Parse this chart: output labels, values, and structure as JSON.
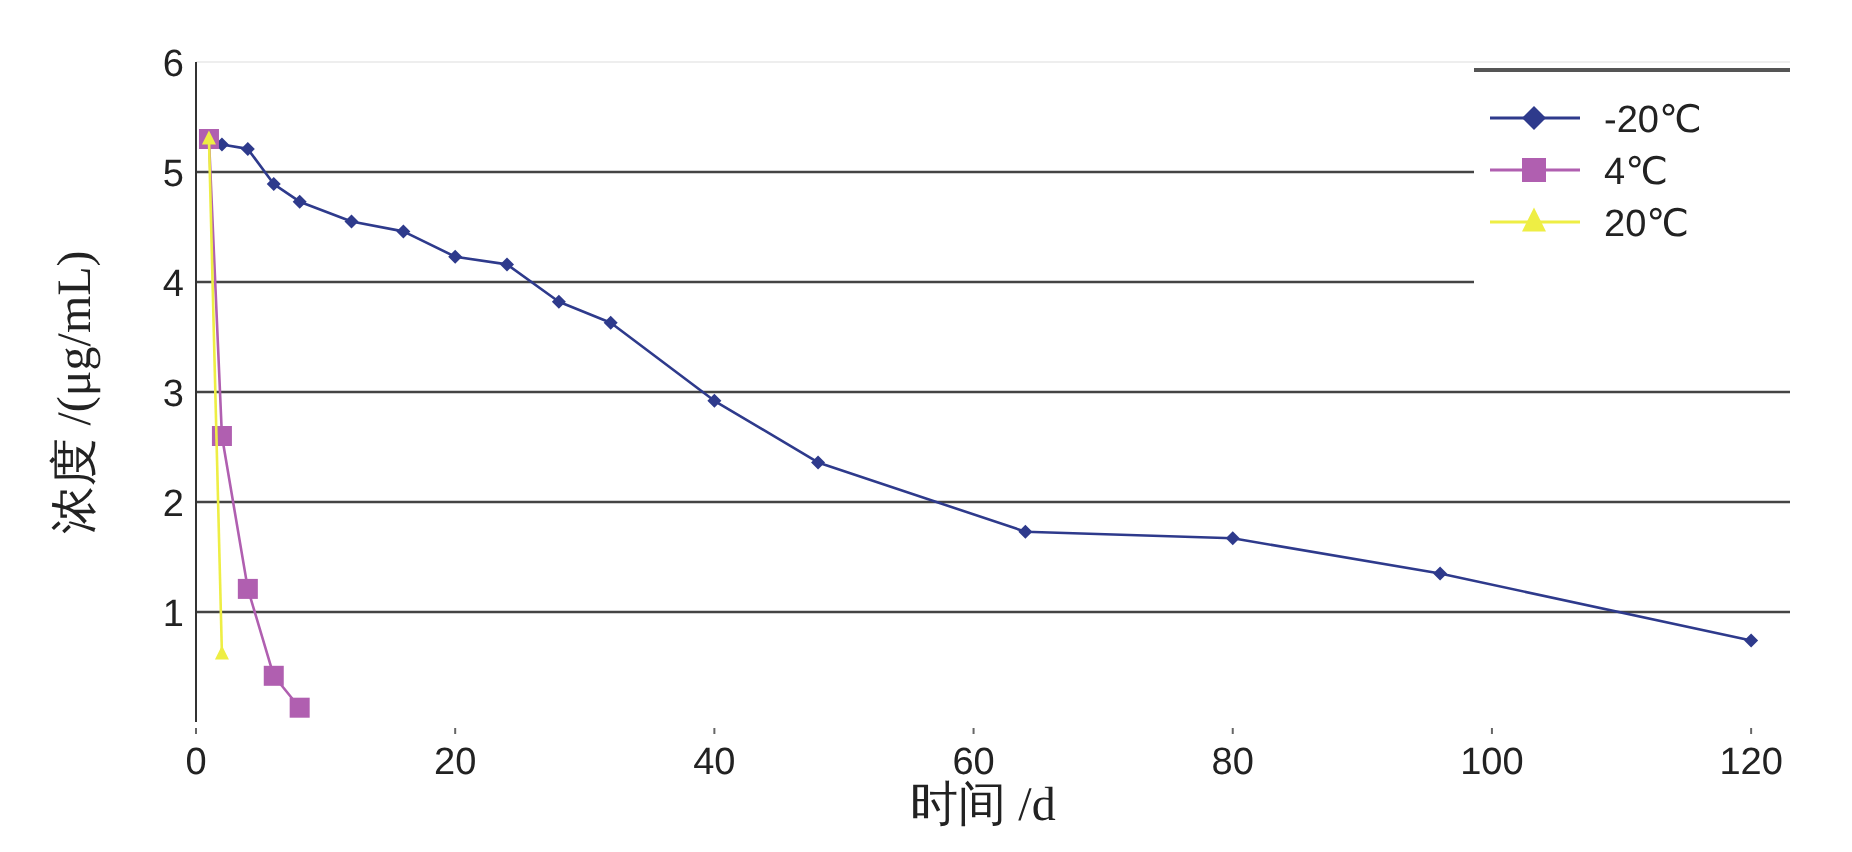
{
  "chart_data": {
    "type": "line",
    "xlabel": "时间 /d",
    "ylabel": "浓度 /(μg/mL)",
    "xlim": [
      0,
      123
    ],
    "xticks": [
      0,
      20,
      40,
      60,
      80,
      100,
      120
    ],
    "ylim": [
      0,
      6
    ],
    "yticks": [
      1,
      2,
      3,
      4,
      5,
      6
    ],
    "grid": "y",
    "legend": "top right",
    "series": [
      {
        "name": "-20℃",
        "color": "#2e3a8c",
        "marker": "diamond",
        "x": [
          2,
          4,
          6,
          8,
          12,
          16,
          20,
          24,
          28,
          32,
          40,
          48,
          64,
          80,
          96,
          120
        ],
        "values": [
          5.25,
          5.21,
          4.89,
          4.73,
          4.55,
          4.46,
          4.23,
          4.16,
          3.82,
          3.63,
          2.92,
          2.36,
          1.73,
          1.67,
          1.35,
          0.74
        ]
      },
      {
        "name": "4℃",
        "color": "#b05fb0",
        "marker": "square",
        "x": [
          1,
          2,
          4,
          6,
          8
        ],
        "values": [
          5.3,
          2.6,
          1.21,
          0.42,
          0.13
        ]
      },
      {
        "name": "20℃",
        "color": "#eeee44",
        "marker": "triangle",
        "x": [
          1,
          2
        ],
        "values": [
          5.3,
          0.62
        ]
      }
    ]
  }
}
